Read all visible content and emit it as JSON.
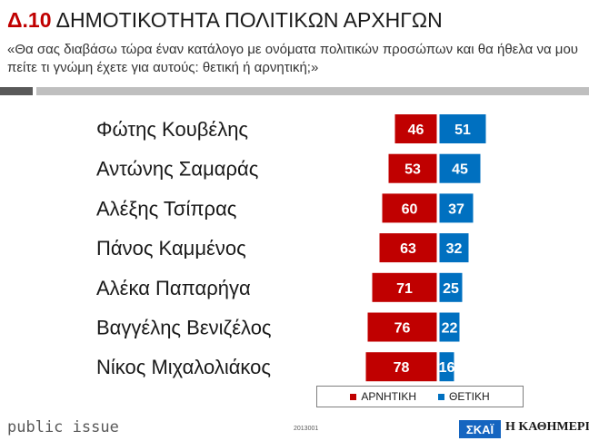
{
  "title": {
    "code": "Δ.10",
    "text": "ΔΗΜΟΤΙΚΟΤΗΤΑ ΠΟΛΙΤΙΚΩΝ ΑΡΧΗΓΩΝ"
  },
  "subtitle": "«Θα σας διαβάσω τώρα έναν κατάλογο με ονόματα πολιτικών προσώπων και θα ήθελα να μου πείτε τι γνώμη έχετε για αυτούς: θετική ή αρνητική;»",
  "chart_data": {
    "type": "bar",
    "orientation": "horizontal-diverging",
    "categories": [
      "Φώτης Κουβέλης",
      "Αντώνης Σαμαράς",
      "Αλέξης Τσίπρας",
      "Πάνος Καμμένος",
      "Αλέκα Παπαρήγα",
      "Βαγγέλης Βενιζέλος",
      "Νίκος Μιχαλολιάκος"
    ],
    "series": [
      {
        "name": "ΑΡΝΗΤΙΚΗ",
        "color": "#c00000",
        "values": [
          46,
          53,
          60,
          63,
          71,
          76,
          78
        ]
      },
      {
        "name": "ΘΕΤΙΚΗ",
        "color": "#0070c0",
        "values": [
          51,
          45,
          37,
          32,
          25,
          22,
          16
        ]
      }
    ],
    "data_labels": true,
    "grid": false,
    "legend_position": "bottom"
  },
  "footer": {
    "brand": "public issue",
    "code": "2013001"
  },
  "logos": {
    "skai": "ΣΚΑΪ",
    "kathimerini": "Η ΚΑΘΗΜΕΡΙΝΗ"
  }
}
